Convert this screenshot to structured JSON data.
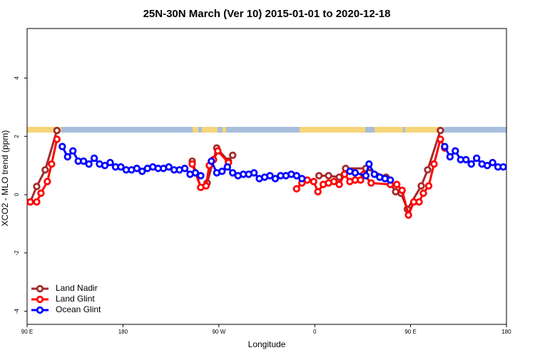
{
  "chart_data": {
    "type": "line",
    "title": "25N-30N March (Ver 10)   2015-01-01 to 2020-12-18",
    "x_label": "Longitude",
    "y_label": "XCO2 - MLO trend (ppm)",
    "xlim": [
      90,
      540
    ],
    "ylim": [
      -4.45,
      5.7
    ],
    "xticks": [
      {
        "value": 90,
        "label": "90 E"
      },
      180,
      {
        "value": 270,
        "label": "90 W"
      },
      {
        "value": 360,
        "label": "0"
      },
      {
        "value": 450,
        "label": "90 E"
      },
      {
        "value": 540,
        "label": "180"
      }
    ],
    "yticks": [
      -4,
      -2,
      0,
      2,
      4
    ],
    "legend": "bottom-left",
    "series": [
      {
        "name": "Land Nadir",
        "color": "#a52a2a",
        "x": [
          93,
          99,
          107,
          118,
          180,
          245,
          253,
          259,
          268,
          279,
          283,
          320,
          364,
          373,
          383,
          389,
          408,
          427,
          436,
          441,
          447,
          460,
          466,
          478
        ],
        "values": [
          -0.25,
          0.28,
          0.85,
          2.2,
          null,
          1.15,
          0.25,
          0.4,
          1.6,
          1.15,
          1.35,
          null,
          0.65,
          0.65,
          0.6,
          0.9,
          0.9,
          0.6,
          0.1,
          0.05,
          -0.5,
          0.3,
          0.85,
          2.2
        ]
      },
      {
        "name": "Land Glint",
        "color": "#ff0000",
        "x": [
          93,
          99,
          103,
          109,
          113,
          118,
          180,
          245,
          253,
          258,
          261,
          265,
          269,
          279,
          310,
          343,
          348,
          353,
          359,
          363,
          368,
          373,
          378,
          383,
          388,
          393,
          398,
          403,
          406,
          413,
          431,
          437,
          442,
          448,
          453,
          458,
          462,
          467,
          472,
          478,
          482
        ],
        "values": [
          -0.25,
          -0.25,
          0.05,
          0.45,
          1.05,
          1.9,
          null,
          1.05,
          0.25,
          0.3,
          1.0,
          1.2,
          1.5,
          1.1,
          null,
          0.2,
          0.4,
          0.5,
          0.45,
          0.1,
          0.35,
          0.4,
          0.45,
          0.35,
          0.7,
          0.45,
          0.5,
          0.5,
          0.7,
          0.4,
          0.35,
          0.35,
          0.15,
          -0.7,
          -0.25,
          -0.25,
          0.05,
          0.3,
          1.05,
          1.9,
          1.6
        ]
      },
      {
        "name": "Ocean Glint",
        "color": "#0000ff",
        "x": [
          123,
          128,
          133,
          138,
          143,
          148,
          153,
          158,
          163,
          168,
          173,
          178,
          183,
          188,
          193,
          198,
          203,
          208,
          213,
          218,
          223,
          228,
          233,
          238,
          243,
          248,
          253,
          258,
          263,
          268,
          273,
          278,
          283,
          288,
          293,
          298,
          303,
          308,
          313,
          318,
          323,
          328,
          333,
          338,
          343,
          348,
          370,
          393,
          398,
          408,
          411,
          416,
          421,
          426,
          431,
          455,
          482,
          487,
          492,
          497,
          502,
          507,
          512,
          517,
          522,
          527,
          532,
          537
        ],
        "values": [
          1.65,
          1.3,
          1.5,
          1.15,
          1.15,
          1.05,
          1.25,
          1.05,
          1.0,
          1.1,
          0.95,
          0.95,
          0.85,
          0.85,
          0.9,
          0.8,
          0.9,
          0.95,
          0.9,
          0.9,
          0.95,
          0.85,
          0.85,
          0.9,
          0.7,
          0.75,
          0.65,
          null,
          1.15,
          0.75,
          0.8,
          0.95,
          0.75,
          0.65,
          0.7,
          0.7,
          0.75,
          0.55,
          0.6,
          0.65,
          0.55,
          0.65,
          0.65,
          0.7,
          0.65,
          0.55,
          null,
          0.8,
          0.75,
          0.65,
          1.05,
          0.7,
          0.6,
          0.55,
          0.5,
          null,
          1.65,
          1.3,
          1.5,
          1.2,
          1.2,
          1.05,
          1.25,
          1.05,
          1.0,
          1.1,
          0.95,
          0.95
        ]
      }
    ]
  }
}
